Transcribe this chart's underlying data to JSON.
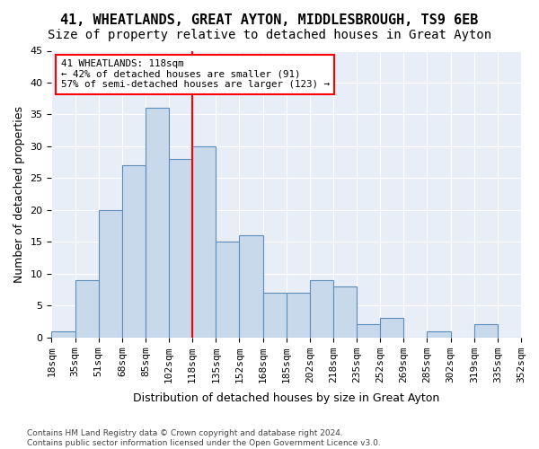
{
  "title_line1": "41, WHEATLANDS, GREAT AYTON, MIDDLESBROUGH, TS9 6EB",
  "title_line2": "Size of property relative to detached houses in Great Ayton",
  "xlabel": "Distribution of detached houses by size in Great Ayton",
  "ylabel": "Number of detached properties",
  "footnote": "Contains HM Land Registry data © Crown copyright and database right 2024.\nContains public sector information licensed under the Open Government Licence v3.0.",
  "bin_labels": [
    "18sqm",
    "35sqm",
    "51sqm",
    "68sqm",
    "85sqm",
    "102sqm",
    "118sqm",
    "135sqm",
    "152sqm",
    "168sqm",
    "185sqm",
    "202sqm",
    "218sqm",
    "235sqm",
    "252sqm",
    "269sqm",
    "285sqm",
    "302sqm",
    "319sqm",
    "335sqm",
    "352sqm"
  ],
  "bar_values": [
    1,
    9,
    20,
    27,
    36,
    28,
    30,
    15,
    16,
    7,
    7,
    9,
    8,
    2,
    3,
    0,
    1,
    0,
    2,
    0
  ],
  "bar_color": "#c9d9ec",
  "bar_edge_color": "#5b8db8",
  "vline_color": "red",
  "annotation_text": "41 WHEATLANDS: 118sqm\n← 42% of detached houses are smaller (91)\n57% of semi-detached houses are larger (123) →",
  "annotation_box_color": "white",
  "annotation_box_edge_color": "red",
  "ylim": [
    0,
    45
  ],
  "yticks": [
    0,
    5,
    10,
    15,
    20,
    25,
    30,
    35,
    40,
    45
  ],
  "background_color": "#e8eef7",
  "grid_color": "white",
  "title_fontsize": 11,
  "subtitle_fontsize": 10,
  "axis_label_fontsize": 9,
  "tick_fontsize": 8
}
